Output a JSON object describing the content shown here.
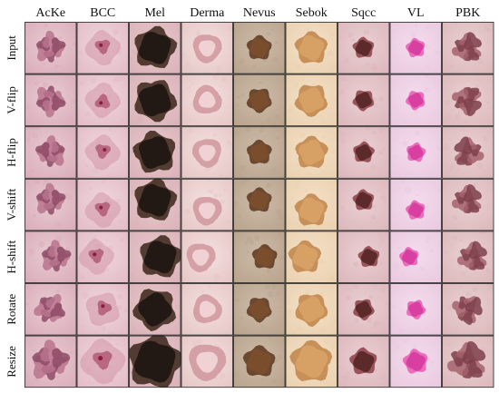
{
  "columns": [
    {
      "label": "AcKe",
      "lesion": {
        "type": "blotch",
        "colors": [
          "#b9738c",
          "#8e4b66"
        ],
        "bg": [
          "#e9cbd3",
          "#d9adba"
        ]
      }
    },
    {
      "label": "BCC",
      "lesion": {
        "type": "diffuse",
        "colors": [
          "#cf8a9e",
          "#a64a66"
        ],
        "bg": [
          "#efd6dd",
          "#e3bcc8"
        ]
      }
    },
    {
      "label": "Mel",
      "lesion": {
        "type": "solid",
        "colors": [
          "#231914",
          "#3a2418"
        ],
        "bg": [
          "#e8c9cd",
          "#d9b2b8"
        ]
      }
    },
    {
      "label": "Derma",
      "lesion": {
        "type": "ring",
        "colors": [
          "#d29aa0",
          "#f0d2d4"
        ],
        "bg": [
          "#f3e1df",
          "#e6c6c6"
        ]
      }
    },
    {
      "label": "Nevus",
      "lesion": {
        "type": "solid",
        "colors": [
          "#7a4e2d",
          "#5a361d"
        ],
        "bg": [
          "#cdbba8",
          "#b9a48d"
        ]
      }
    },
    {
      "label": "Sebok",
      "lesion": {
        "type": "solid",
        "colors": [
          "#d7a064",
          "#c08348"
        ],
        "bg": [
          "#f4e0c7",
          "#ead1b0"
        ]
      }
    },
    {
      "label": "Sqcc",
      "lesion": {
        "type": "solid",
        "colors": [
          "#5c2a2a",
          "#8a3f45"
        ],
        "bg": [
          "#ead0d3",
          "#dcb7bc"
        ]
      }
    },
    {
      "label": "VL",
      "lesion": {
        "type": "solid",
        "colors": [
          "#d83fa1",
          "#e85bb2"
        ],
        "bg": [
          "#f3dcec",
          "#eac9e0"
        ]
      }
    },
    {
      "label": "PBK",
      "lesion": {
        "type": "blotch",
        "colors": [
          "#a5616c",
          "#7e3f4b"
        ],
        "bg": [
          "#ead0d1",
          "#dcb9bb"
        ]
      }
    }
  ],
  "rows": [
    {
      "label": "Input"
    },
    {
      "label": "V-flip"
    },
    {
      "label": "H-flip"
    },
    {
      "label": "V-shift"
    },
    {
      "label": "H-shift"
    },
    {
      "label": "Rotate"
    },
    {
      "label": "Resize"
    }
  ]
}
